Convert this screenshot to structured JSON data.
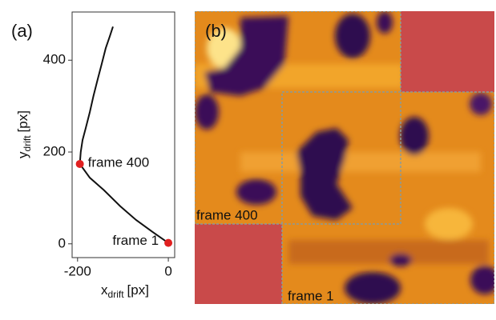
{
  "chart_data": {
    "type": "line",
    "panel_labels": [
      "(a)",
      "(b)"
    ],
    "xlabel": {
      "main": "x",
      "sub": "drift",
      "unit": "[px]"
    },
    "ylabel": {
      "main": "y",
      "sub": "drift",
      "unit": "[px]"
    },
    "xlim": [
      -212,
      14
    ],
    "ylim": [
      -30,
      505
    ],
    "xticks": [
      -200,
      0
    ],
    "yticks": [
      0,
      200,
      400
    ],
    "series": [
      {
        "color": "#111111",
        "x": [
          0,
          -35,
          -71,
          -106,
          -142,
          -173,
          -195,
          -193,
          -189,
          -182,
          -173,
          -165,
          -156,
          -147,
          -138,
          -129,
          -122
        ],
        "y": [
          2,
          26,
          52,
          82,
          117,
          144,
          174,
          200,
          226,
          252,
          287,
          322,
          357,
          391,
          426,
          452,
          473
        ]
      }
    ],
    "markers": [
      {
        "label": "frame 1",
        "x": 0,
        "y": 2,
        "color": "#e02020"
      },
      {
        "label": "frame 400",
        "x": -195,
        "y": 174,
        "color": "#e02020"
      }
    ],
    "image_labels": [
      "frame 400",
      "frame 1"
    ]
  }
}
